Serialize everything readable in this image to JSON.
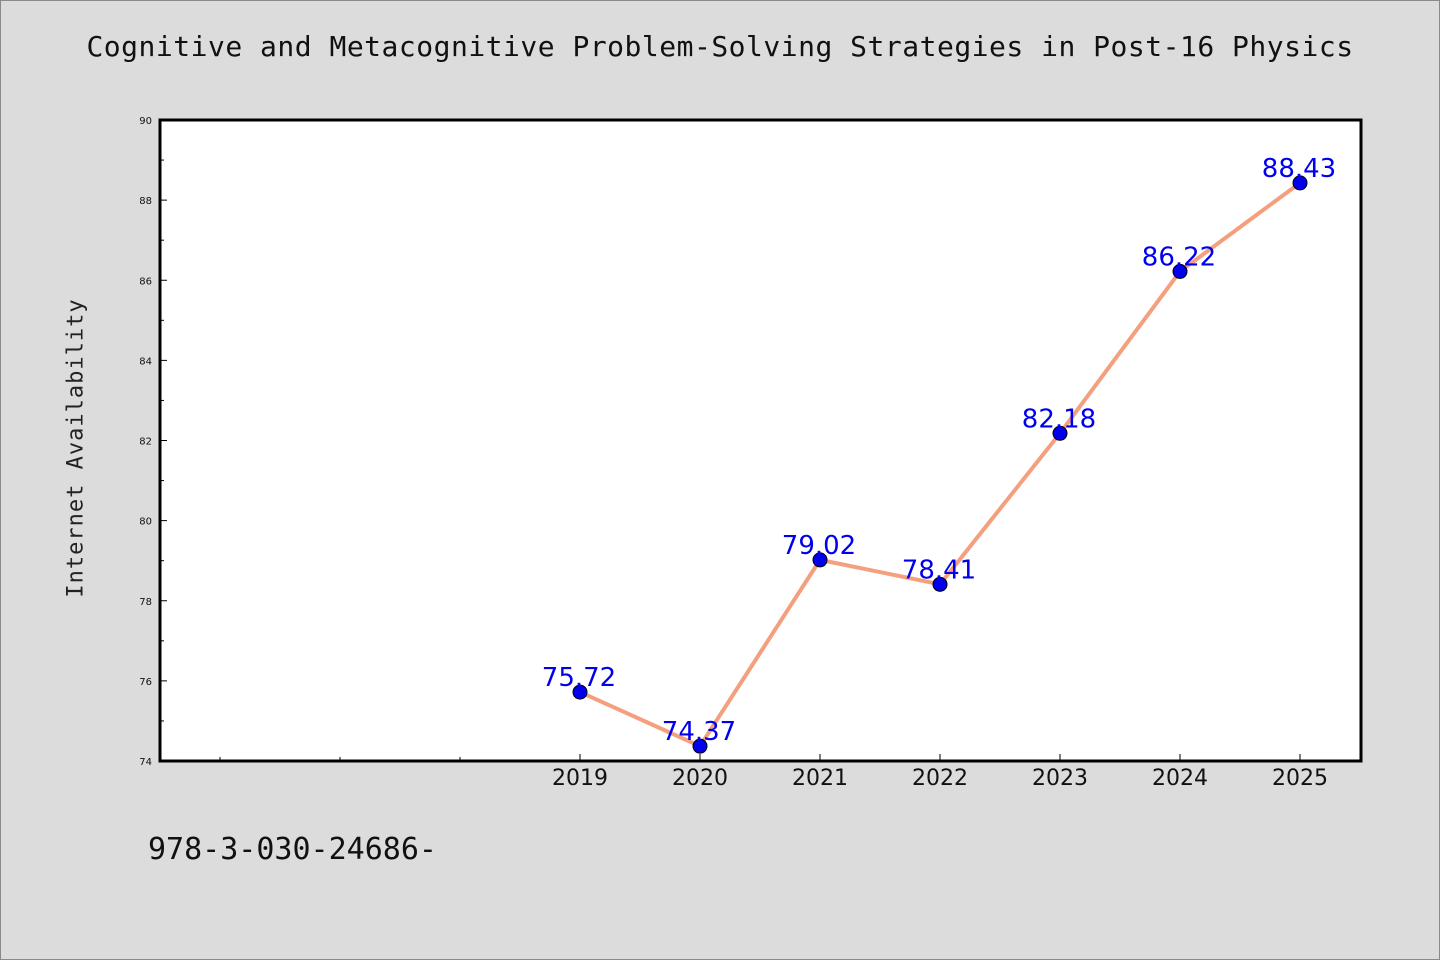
{
  "chart_data": {
    "type": "line",
    "title": "Cognitive and Metacognitive Problem-Solving Strategies in Post-16 Physics",
    "xlabel": "",
    "ylabel": "Internet Availability",
    "categories": [
      "2019",
      "2020",
      "2021",
      "2022",
      "2023",
      "2024",
      "2025"
    ],
    "series": [
      {
        "values": [
          75.72,
          74.37,
          79.02,
          78.41,
          82.18,
          86.22,
          88.43
        ],
        "line_color": "#f4a07f",
        "marker_color": "#0000ee",
        "label_color": "#0000ee"
      }
    ],
    "ylim": [
      74,
      90
    ],
    "yticks": [
      "74",
      "76",
      "78",
      "80",
      "82",
      "84",
      "86",
      "88",
      "90"
    ],
    "grid": false,
    "legend": "none"
  },
  "footer_text": "978-3-030-24686-",
  "colors": {
    "background": "#dcdcdc",
    "plot_background": "#ffffff",
    "axis": "#000000"
  }
}
